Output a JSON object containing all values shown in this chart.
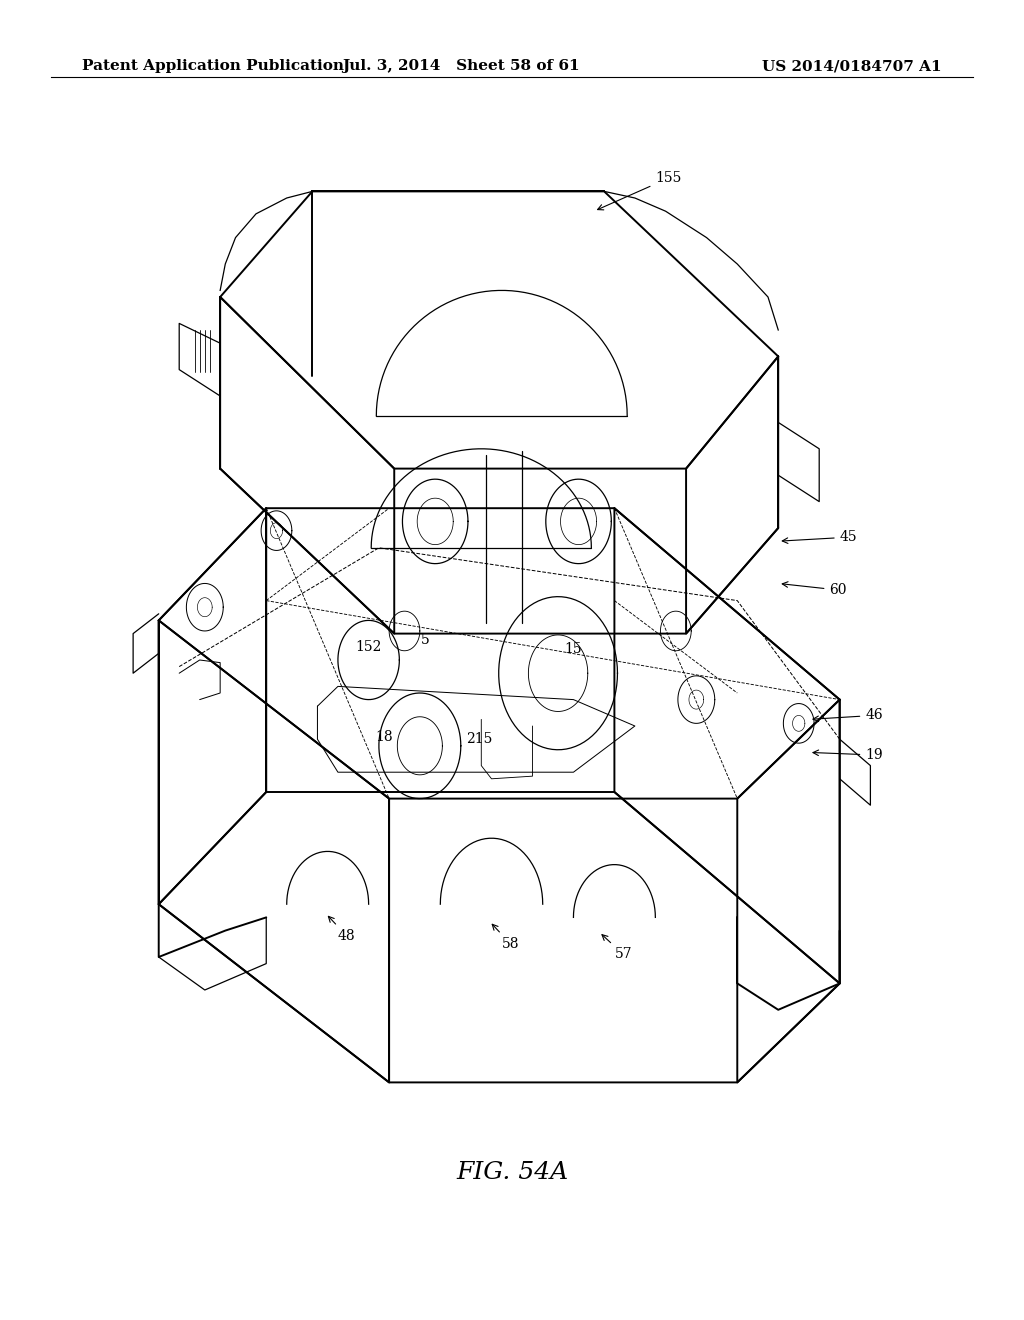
{
  "background_color": "#ffffff",
  "header_left": "Patent Application Publication",
  "header_center": "Jul. 3, 2014   Sheet 58 of 61",
  "header_right": "US 2014/0184707 A1",
  "figure_label": "FIG. 54A",
  "header_font_size": 11,
  "fig_label_font_size": 18
}
